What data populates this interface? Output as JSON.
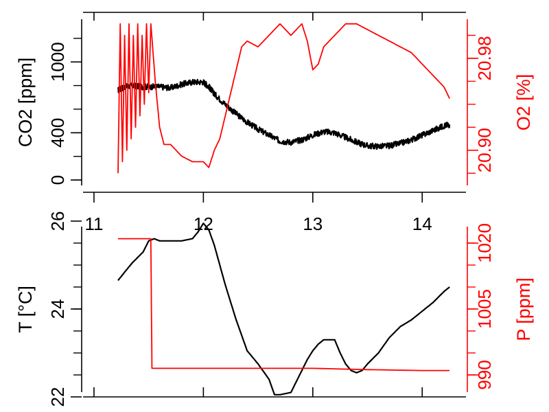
{
  "colors": {
    "left_axis": "#000000",
    "right_axis": "#ff0000",
    "background": "#ffffff"
  },
  "chart_data": [
    {
      "type": "line",
      "xlabel": "",
      "xlim": [
        10.9,
        14.4
      ],
      "x_ticks": [
        "11",
        "12",
        "13",
        "14"
      ],
      "left_axis": {
        "label": "CO2 [ppm]",
        "ylim": [
          -40,
          1420
        ],
        "ticks": [
          "0",
          "400",
          "1000"
        ]
      },
      "right_axis": {
        "label": "O2 [%]",
        "ylim": [
          20.87,
          21.02
        ],
        "ticks": [
          "20.90",
          "20.98"
        ]
      },
      "series": [
        {
          "axis": "left",
          "color": "#000000",
          "noise": 25,
          "x": [
            11.22,
            11.28,
            11.35,
            11.42,
            11.5,
            11.6,
            11.7,
            11.8,
            11.9,
            12.0,
            12.05,
            12.1,
            12.2,
            12.3,
            12.4,
            12.5,
            12.6,
            12.7,
            12.8,
            12.9,
            13.0,
            13.1,
            13.2,
            13.3,
            13.4,
            13.5,
            13.6,
            13.7,
            13.8,
            13.9,
            14.0,
            14.1,
            14.2,
            14.25
          ],
          "y": [
            760,
            790,
            800,
            790,
            790,
            790,
            780,
            810,
            830,
            830,
            790,
            730,
            640,
            560,
            490,
            430,
            380,
            330,
            320,
            340,
            380,
            410,
            400,
            360,
            320,
            290,
            285,
            290,
            310,
            340,
            380,
            420,
            460,
            470
          ]
        },
        {
          "axis": "right",
          "color": "#ff0000",
          "noise": 0,
          "x": [
            11.22,
            11.24,
            11.26,
            11.28,
            11.3,
            11.32,
            11.34,
            11.36,
            11.38,
            11.4,
            11.42,
            11.44,
            11.46,
            11.48,
            11.5,
            11.52,
            11.56,
            11.6,
            11.64,
            11.7,
            11.8,
            11.9,
            12.0,
            12.05,
            12.1,
            12.15,
            12.2,
            12.25,
            12.3,
            12.35,
            12.4,
            12.5,
            12.6,
            12.7,
            12.8,
            12.9,
            12.95,
            13.0,
            13.05,
            13.1,
            13.2,
            13.3,
            13.4,
            13.5,
            13.6,
            13.7,
            13.8,
            13.9,
            14.0,
            14.05,
            14.1,
            14.15,
            14.2,
            14.25
          ],
          "y": [
            20.88,
            21.01,
            20.89,
            21.0,
            20.9,
            21.01,
            20.91,
            21.0,
            20.92,
            21.01,
            20.93,
            21.0,
            20.94,
            21.01,
            20.95,
            21.01,
            20.96,
            20.92,
            20.905,
            20.905,
            20.895,
            20.89,
            20.89,
            20.885,
            20.9,
            20.91,
            20.93,
            20.95,
            20.97,
            20.99,
            20.995,
            20.99,
            21.0,
            21.01,
            21.0,
            21.01,
            20.995,
            20.97,
            20.975,
            20.99,
            21.0,
            21.01,
            21.01,
            21.005,
            21.0,
            20.995,
            20.99,
            20.985,
            20.975,
            20.97,
            20.965,
            20.96,
            20.955,
            20.945
          ]
        }
      ]
    },
    {
      "type": "line",
      "xlabel": "",
      "xlim": [
        10.9,
        14.4
      ],
      "x_ticks": [
        "11",
        "12",
        "13",
        "14"
      ],
      "left_axis": {
        "label": "T [°C]",
        "ylim": [
          22.0,
          26.0
        ],
        "ticks": [
          "22",
          "24",
          "26"
        ]
      },
      "right_axis": {
        "label": "P [ppm]",
        "ylim": [
          985,
          1025
        ],
        "ticks": [
          "990",
          "1005",
          "1020"
        ]
      },
      "series": [
        {
          "axis": "left",
          "color": "#000000",
          "noise": 0,
          "x": [
            11.22,
            11.3,
            11.35,
            11.45,
            11.5,
            11.55,
            11.6,
            11.7,
            11.8,
            11.9,
            11.95,
            12.0,
            12.05,
            12.1,
            12.15,
            12.2,
            12.3,
            12.4,
            12.5,
            12.6,
            12.65,
            12.7,
            12.8,
            12.9,
            12.95,
            13.0,
            13.05,
            13.1,
            13.2,
            13.25,
            13.3,
            13.35,
            13.4,
            13.45,
            13.5,
            13.6,
            13.7,
            13.8,
            13.9,
            14.0,
            14.1,
            14.2,
            14.25
          ],
          "y": [
            24.65,
            24.9,
            25.05,
            25.3,
            25.55,
            25.6,
            25.55,
            25.55,
            25.55,
            25.6,
            25.75,
            25.95,
            25.8,
            25.45,
            25.0,
            24.55,
            23.75,
            23.05,
            22.75,
            22.4,
            22.05,
            22.05,
            22.1,
            22.6,
            22.85,
            23.05,
            23.2,
            23.3,
            23.3,
            23.0,
            22.75,
            22.6,
            22.55,
            22.6,
            22.75,
            23.0,
            23.35,
            23.6,
            23.75,
            23.95,
            24.15,
            24.4,
            24.5
          ]
        },
        {
          "axis": "right",
          "color": "#ff0000",
          "noise": 0,
          "x": [
            11.22,
            11.52,
            11.52,
            11.53,
            12.0,
            12.5,
            13.0,
            13.5,
            14.0,
            14.25
          ],
          "y": [
            1021,
            1021,
            1020,
            991.5,
            991.5,
            991.5,
            991.5,
            991.2,
            991.0,
            991.0
          ]
        }
      ]
    }
  ]
}
